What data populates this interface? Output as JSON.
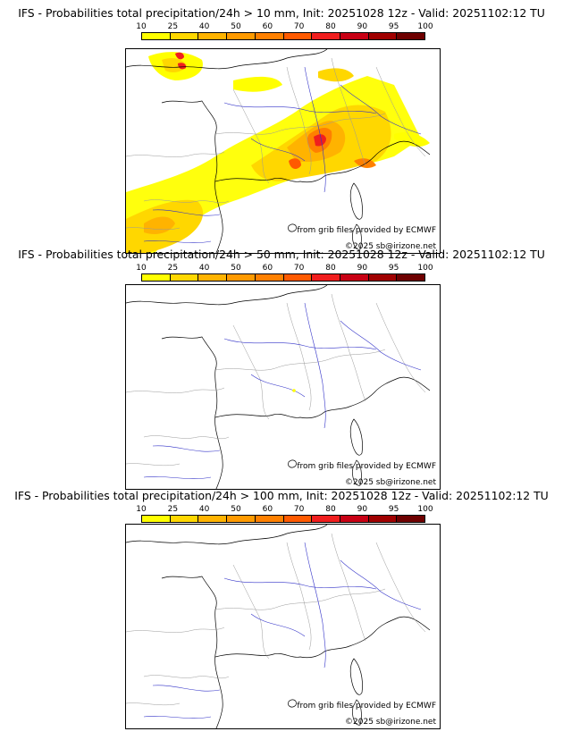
{
  "panels": [
    {
      "title": "IFS - Probabilities total precipitation/24h > 10 mm, Init: 20251028 12z - Valid: 20251102:12 TU",
      "has_precip": true
    },
    {
      "title": "IFS - Probabilities total precipitation/24h > 50 mm, Init: 20251028 12z - Valid: 20251102:12 TU",
      "has_precip": false
    },
    {
      "title": "IFS - Probabilities total precipitation/24h > 100 mm, Init: 20251028 12z - Valid: 20251102:12 TU",
      "has_precip": false
    }
  ],
  "colorbar": {
    "ticks": [
      "10",
      "25",
      "40",
      "50",
      "60",
      "70",
      "80",
      "90",
      "95",
      "100"
    ],
    "colors": [
      "#ffff00",
      "#ffd700",
      "#ffb300",
      "#ff9a00",
      "#ff8000",
      "#ff5a00",
      "#f01e1e",
      "#c80014",
      "#a00000",
      "#6e0000"
    ]
  },
  "credits": {
    "source": "from grib files provided by ECMWF",
    "copyright": "©2025 sb@irizone.net"
  }
}
